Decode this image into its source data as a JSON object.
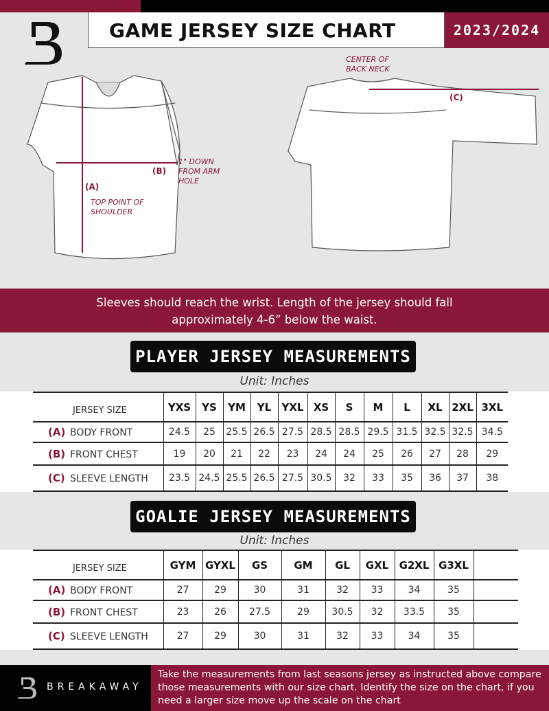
{
  "header": {
    "title": "GAME JERSEY SIZE CHART",
    "season": "2023/2024"
  },
  "diagram": {
    "label_a": "(A)",
    "label_a_desc": "TOP POINT OF SHOULDER",
    "label_b": "(B)",
    "label_b_desc": "1\" DOWN FROM ARM HOLE",
    "label_c": "(C)",
    "label_c_desc": "CENTER OF BACK NECK"
  },
  "banner": {
    "line1": "Sleeves should reach the wrist. Length of the jersey should fall",
    "line2": "approximately 4-6” below the waist."
  },
  "player": {
    "title": "PLAYER JERSEY MEASUREMENTS",
    "unit": "Unit: Inches",
    "header_label": "JERSEY SIZE",
    "sizes": [
      "YXS",
      "YS",
      "YM",
      "YL",
      "YXL",
      "XS",
      "S",
      "M",
      "L",
      "XL",
      "2XL",
      "3XL"
    ],
    "rows": [
      {
        "mark": "(A)",
        "label": "BODY FRONT",
        "values": [
          "24.5",
          "25",
          "25.5",
          "26.5",
          "27.5",
          "28.5",
          "28.5",
          "29.5",
          "31.5",
          "32.5",
          "32.5",
          "34.5"
        ]
      },
      {
        "mark": "(B)",
        "label": "FRONT CHEST",
        "values": [
          "19",
          "20",
          "21",
          "22",
          "23",
          "24",
          "24",
          "25",
          "26",
          "27",
          "28",
          "29"
        ]
      },
      {
        "mark": "(C)",
        "label": "SLEEVE LENGTH",
        "values": [
          "23.5",
          "24.5",
          "25.5",
          "26.5",
          "27.5",
          "30.5",
          "32",
          "33",
          "35",
          "36",
          "37",
          "38"
        ]
      }
    ]
  },
  "goalie": {
    "title": "GOALIE JERSEY MEASUREMENTS",
    "unit": "Unit: Inches",
    "header_label": "JERSEY SIZE",
    "sizes": [
      "GYM",
      "GYXL",
      "GS",
      "GM",
      "GL",
      "GXL",
      "G2XL",
      "G3XL",
      ""
    ],
    "rows": [
      {
        "mark": "(A)",
        "label": "BODY FRONT",
        "values": [
          "27",
          "29",
          "30",
          "31",
          "32",
          "33",
          "34",
          "35",
          ""
        ]
      },
      {
        "mark": "(B)",
        "label": "FRONT CHEST",
        "values": [
          "23",
          "26",
          "27.5",
          "29",
          "30.5",
          "32",
          "33.5",
          "35",
          ""
        ]
      },
      {
        "mark": "(C)",
        "label": "SLEEVE LENGTH",
        "values": [
          "27",
          "29",
          "30",
          "31",
          "32",
          "33",
          "34",
          "35",
          ""
        ]
      }
    ]
  },
  "footer": {
    "brand": "BREAKAWAY",
    "logo_letter": "B",
    "note": "Take the measurements from last seasons jersey as instructed above compare those measurements  with our size chart. Identify the size on the chart, if you need a larger size move up the scale on the chart"
  },
  "colors": {
    "accent": "#8a1737",
    "dark": "#000000",
    "background": "#e6e6e7"
  }
}
